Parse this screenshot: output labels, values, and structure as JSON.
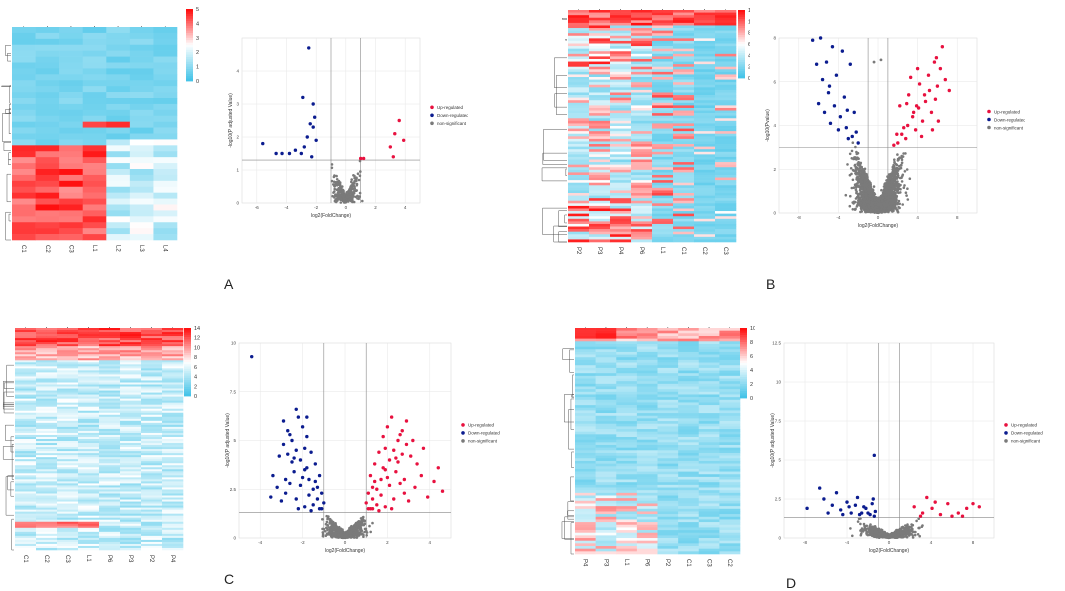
{
  "panel_letters": [
    "A",
    "B",
    "C",
    "D"
  ],
  "colors": {
    "up": "#e8113f",
    "down": "#0b1c8f",
    "ns": "#7a7a7a",
    "heat_low": "#45c4e8",
    "heat_mid": "#ffffff",
    "heat_high": "#ff1010",
    "grid": "#e6e6e6"
  },
  "legend_labels": [
    "Up-regulated",
    "Down-regulated",
    "non-significant"
  ],
  "chart_data": [
    {
      "panel": "A",
      "type": "heatmap",
      "columns": [
        "C1",
        "C2",
        "C3",
        "L1",
        "L2",
        "L3",
        "L4"
      ],
      "rows": 36,
      "colorbar_ticks": [
        0,
        1,
        2,
        3,
        4,
        5
      ],
      "range": [
        0,
        5
      ]
    },
    {
      "panel": "A",
      "type": "scatter",
      "xlabel": "log2(FoldChange)",
      "ylabel": "-log10(P adjusted Value)",
      "xlim": [
        -7,
        5
      ],
      "ylim": [
        0,
        5
      ],
      "xticks": [
        -6,
        -4,
        -2,
        0,
        2,
        4
      ],
      "yticks": [
        0,
        1,
        2,
        3,
        4
      ],
      "threshold_y": 1.3,
      "threshold_x": [
        -1,
        1
      ],
      "legend_position": "right",
      "n_nonsig": 380,
      "spread": 1.2,
      "up": [
        [
          3.6,
          2.5
        ],
        [
          3.3,
          2.1
        ],
        [
          3.0,
          1.7
        ],
        [
          3.2,
          1.4
        ],
        [
          1.2,
          1.35
        ],
        [
          1.0,
          1.35
        ],
        [
          3.9,
          1.9
        ]
      ],
      "down": [
        [
          -2.5,
          4.7
        ],
        [
          -2.9,
          3.2
        ],
        [
          -2.2,
          3.0
        ],
        [
          -2.1,
          2.6
        ],
        [
          -2.4,
          2.4
        ],
        [
          -2.6,
          2.0
        ],
        [
          -2.0,
          1.9
        ],
        [
          -3.4,
          1.6
        ],
        [
          -3.8,
          1.5
        ],
        [
          -4.7,
          1.5
        ],
        [
          -3.0,
          1.5
        ],
        [
          -2.3,
          1.4
        ],
        [
          -5.6,
          1.8
        ],
        [
          -2.2,
          2.3
        ],
        [
          -2.8,
          1.7
        ],
        [
          -4.3,
          1.5
        ]
      ]
    },
    {
      "panel": "B",
      "type": "heatmap",
      "columns": [
        "P2",
        "P3",
        "P4",
        "P6",
        "L1",
        "C1",
        "C2",
        "C3"
      ],
      "rows": 90,
      "colorbar_ticks": [
        0,
        2,
        4,
        6,
        8,
        10,
        12
      ],
      "range": [
        0,
        12
      ]
    },
    {
      "panel": "B",
      "type": "scatter",
      "xlabel": "log2(FoldChange)",
      "ylabel": "-log10(Pvalue)",
      "xlim": [
        -10,
        10
      ],
      "ylim": [
        0,
        8
      ],
      "xticks": [
        -8,
        -4,
        0,
        4,
        8
      ],
      "yticks": [
        0,
        2,
        4,
        6,
        8
      ],
      "threshold_y": 3.0,
      "threshold_x": [
        -1,
        1
      ],
      "legend_position": "right",
      "n_nonsig": 3200,
      "spread": 3.0,
      "up": [
        [
          2.0,
          3.2
        ],
        [
          2.4,
          3.6
        ],
        [
          3.0,
          4.0
        ],
        [
          3.5,
          4.4
        ],
        [
          4.1,
          4.8
        ],
        [
          4.8,
          5.1
        ],
        [
          5.2,
          5.6
        ],
        [
          2.8,
          3.4
        ],
        [
          3.8,
          3.8
        ],
        [
          4.5,
          4.2
        ],
        [
          5.4,
          4.6
        ],
        [
          5.8,
          5.2
        ],
        [
          6.3,
          6.6
        ],
        [
          6.8,
          6.1
        ],
        [
          2.2,
          4.9
        ],
        [
          3.1,
          5.4
        ],
        [
          4.2,
          5.9
        ],
        [
          5.1,
          6.3
        ],
        [
          5.9,
          7.1
        ],
        [
          6.5,
          7.6
        ],
        [
          1.6,
          3.1
        ],
        [
          2.6,
          3.9
        ],
        [
          3.6,
          4.6
        ],
        [
          4.4,
          3.5
        ],
        [
          5.5,
          3.8
        ],
        [
          6.1,
          4.2
        ],
        [
          7.2,
          5.6
        ],
        [
          4.0,
          6.6
        ],
        [
          3.3,
          6.2
        ],
        [
          2.9,
          5.0
        ],
        [
          5.7,
          6.9
        ],
        [
          6.0,
          5.8
        ],
        [
          1.9,
          3.6
        ],
        [
          4.7,
          5.4
        ],
        [
          3.9,
          4.9
        ]
      ],
      "down": [
        [
          -2.0,
          3.2
        ],
        [
          -2.6,
          3.5
        ],
        [
          -3.2,
          3.9
        ],
        [
          -3.8,
          4.4
        ],
        [
          -4.4,
          4.9
        ],
        [
          -5.0,
          5.5
        ],
        [
          -5.6,
          6.1
        ],
        [
          -3.0,
          3.4
        ],
        [
          -4.0,
          3.8
        ],
        [
          -4.8,
          4.1
        ],
        [
          -5.4,
          4.6
        ],
        [
          -6.0,
          5.0
        ],
        [
          -2.4,
          4.6
        ],
        [
          -3.4,
          5.3
        ],
        [
          -4.2,
          6.3
        ],
        [
          -5.2,
          6.9
        ],
        [
          -6.6,
          7.9
        ],
        [
          -5.8,
          8.0
        ],
        [
          -3.6,
          7.4
        ],
        [
          -2.8,
          6.8
        ],
        [
          -4.6,
          7.6
        ],
        [
          -6.2,
          6.8
        ],
        [
          -3.1,
          4.7
        ],
        [
          -2.2,
          3.7
        ],
        [
          -4.9,
          5.8
        ]
      ],
      "nonsig_extra": [
        [
          0.3,
          7.0
        ],
        [
          -0.4,
          6.9
        ]
      ]
    },
    {
      "panel": "C",
      "type": "heatmap",
      "columns": [
        "C1",
        "C2",
        "C3",
        "L1",
        "P6",
        "P3",
        "P2",
        "P4"
      ],
      "rows": 110,
      "colorbar_ticks": [
        0,
        2,
        4,
        6,
        8,
        10,
        12,
        14
      ],
      "range": [
        0,
        14
      ]
    },
    {
      "panel": "C",
      "type": "scatter",
      "xlabel": "log2(FoldChange)",
      "ylabel": "-log10(P adjusted Value)",
      "xlim": [
        -5,
        5
      ],
      "ylim": [
        0,
        10
      ],
      "xticks": [
        -4,
        -2,
        0,
        2,
        4
      ],
      "yticks": [
        0,
        2.5,
        5,
        7.5,
        10
      ],
      "threshold_y": 1.3,
      "threshold_x": [
        -1,
        1
      ],
      "legend_position": "right",
      "n_nonsig": 900,
      "spread": 1.2,
      "up": [
        [
          1.1,
          1.5
        ],
        [
          1.3,
          2.0
        ],
        [
          1.5,
          2.5
        ],
        [
          1.7,
          3.0
        ],
        [
          1.9,
          3.5
        ],
        [
          2.1,
          4.0
        ],
        [
          2.3,
          4.5
        ],
        [
          2.5,
          5.0
        ],
        [
          2.7,
          5.5
        ],
        [
          2.9,
          6.0
        ],
        [
          1.2,
          3.2
        ],
        [
          1.4,
          3.8
        ],
        [
          1.6,
          4.4
        ],
        [
          1.8,
          5.2
        ],
        [
          2.0,
          5.7
        ],
        [
          2.2,
          6.2
        ],
        [
          2.4,
          3.4
        ],
        [
          2.6,
          2.8
        ],
        [
          2.8,
          2.3
        ],
        [
          3.0,
          1.9
        ],
        [
          3.3,
          2.6
        ],
        [
          3.6,
          3.2
        ],
        [
          3.9,
          2.1
        ],
        [
          4.2,
          2.9
        ],
        [
          4.4,
          3.6
        ],
        [
          4.6,
          2.4
        ],
        [
          1.0,
          1.8
        ],
        [
          1.3,
          2.6
        ],
        [
          1.5,
          1.7
        ],
        [
          1.7,
          2.2
        ],
        [
          1.9,
          1.6
        ],
        [
          2.1,
          2.7
        ],
        [
          2.3,
          2.0
        ],
        [
          2.5,
          3.9
        ],
        [
          2.7,
          4.3
        ],
        [
          2.9,
          4.8
        ],
        [
          3.1,
          4.2
        ],
        [
          3.4,
          3.8
        ],
        [
          3.7,
          4.6
        ],
        [
          2.0,
          3.1
        ],
        [
          1.6,
          1.4
        ],
        [
          2.2,
          1.5
        ],
        [
          1.1,
          2.3
        ],
        [
          1.4,
          2.9
        ],
        [
          1.8,
          3.6
        ],
        [
          2.4,
          4.1
        ],
        [
          2.6,
          5.3
        ],
        [
          2.8,
          3.0
        ],
        [
          3.2,
          5.0
        ],
        [
          1.9,
          4.6
        ],
        [
          1.2,
          1.5
        ],
        [
          1.3,
          1.5
        ]
      ],
      "down": [
        [
          -1.1,
          1.5
        ],
        [
          -1.3,
          2.0
        ],
        [
          -1.5,
          2.5
        ],
        [
          -1.7,
          3.0
        ],
        [
          -1.9,
          3.5
        ],
        [
          -2.1,
          4.0
        ],
        [
          -2.3,
          4.5
        ],
        [
          -2.5,
          5.0
        ],
        [
          -2.7,
          5.5
        ],
        [
          -2.9,
          6.0
        ],
        [
          -1.2,
          3.2
        ],
        [
          -1.4,
          3.8
        ],
        [
          -1.6,
          4.4
        ],
        [
          -1.8,
          5.2
        ],
        [
          -2.0,
          5.7
        ],
        [
          -2.2,
          6.2
        ],
        [
          -2.4,
          3.4
        ],
        [
          -2.6,
          2.8
        ],
        [
          -2.8,
          2.3
        ],
        [
          -3.0,
          1.9
        ],
        [
          -3.2,
          2.6
        ],
        [
          -3.4,
          3.2
        ],
        [
          -1.0,
          1.8
        ],
        [
          -1.3,
          2.6
        ],
        [
          -1.5,
          1.7
        ],
        [
          -1.7,
          2.2
        ],
        [
          -1.9,
          1.6
        ],
        [
          -2.1,
          2.7
        ],
        [
          -2.3,
          2.0
        ],
        [
          -2.5,
          3.9
        ],
        [
          -2.7,
          4.3
        ],
        [
          -2.9,
          4.8
        ],
        [
          -3.1,
          4.2
        ],
        [
          -2.0,
          3.1
        ],
        [
          -1.6,
          1.4
        ],
        [
          -2.2,
          1.5
        ],
        [
          -1.1,
          2.3
        ],
        [
          -1.4,
          2.9
        ],
        [
          -1.8,
          3.6
        ],
        [
          -2.4,
          4.1
        ],
        [
          -2.6,
          5.3
        ],
        [
          -2.8,
          3.0
        ],
        [
          -3.5,
          2.1
        ],
        [
          -1.9,
          4.6
        ],
        [
          -2.3,
          6.6
        ],
        [
          -1.8,
          6.2
        ],
        [
          -4.4,
          9.3
        ],
        [
          -1.2,
          1.5
        ]
      ]
    },
    {
      "panel": "D",
      "type": "heatmap",
      "columns": [
        "P4",
        "P3",
        "L1",
        "P6",
        "P2",
        "C1",
        "C3",
        "C2"
      ],
      "rows": 85,
      "colorbar_ticks": [
        0,
        2,
        4,
        6,
        8,
        10
      ],
      "range": [
        0,
        10
      ]
    },
    {
      "panel": "D",
      "type": "scatter",
      "xlabel": "log2(FoldChange)",
      "ylabel": "-log10(P adjusted Value)",
      "xlim": [
        -10,
        10
      ],
      "ylim": [
        0,
        12.5
      ],
      "xticks": [
        -8,
        -4,
        0,
        4,
        8
      ],
      "yticks": [
        0,
        2.5,
        5,
        7.5,
        10,
        12.5
      ],
      "threshold_y": 1.3,
      "threshold_x": [
        -1,
        1
      ],
      "legend_position": "right",
      "n_nonsig": 700,
      "spread": 3.5,
      "up": [
        [
          2.4,
          2.0
        ],
        [
          3.2,
          1.6
        ],
        [
          4.1,
          1.9
        ],
        [
          4.9,
          1.5
        ],
        [
          6.0,
          1.4
        ],
        [
          7.4,
          1.9
        ],
        [
          8.0,
          2.2
        ],
        [
          5.6,
          2.2
        ],
        [
          3.6,
          2.6
        ],
        [
          4.4,
          2.3
        ],
        [
          6.6,
          1.6
        ],
        [
          8.6,
          2.0
        ],
        [
          7.0,
          1.4
        ],
        [
          3.0,
          1.4
        ]
      ],
      "down": [
        [
          -1.4,
          5.3
        ],
        [
          -7.8,
          1.9
        ],
        [
          -6.6,
          3.2
        ],
        [
          -6.2,
          2.5
        ],
        [
          -5.4,
          2.1
        ],
        [
          -5.0,
          2.9
        ],
        [
          -4.6,
          1.8
        ],
        [
          -4.0,
          2.3
        ],
        [
          -3.6,
          1.6
        ],
        [
          -3.2,
          2.1
        ],
        [
          -2.8,
          1.5
        ],
        [
          -2.4,
          2.0
        ],
        [
          -2.0,
          1.6
        ],
        [
          -1.6,
          2.2
        ],
        [
          -1.4,
          1.4
        ],
        [
          -3.0,
          2.6
        ],
        [
          -2.2,
          1.9
        ],
        [
          -1.8,
          1.5
        ],
        [
          -4.4,
          1.5
        ],
        [
          -5.8,
          1.6
        ],
        [
          -1.3,
          1.7
        ],
        [
          -2.6,
          1.6
        ],
        [
          -3.8,
          2.0
        ],
        [
          -1.5,
          2.5
        ]
      ]
    }
  ]
}
